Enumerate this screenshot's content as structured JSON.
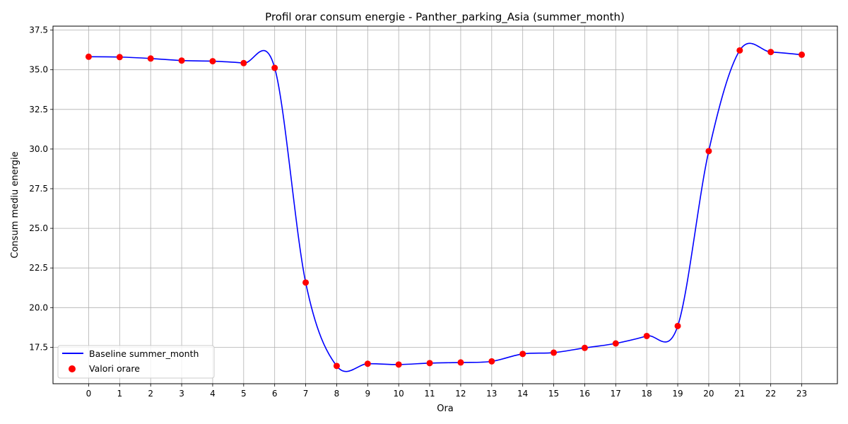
{
  "chart_data": {
    "type": "line",
    "title": "Profil orar consum energie - Panther_parking_Asia (summer_month)",
    "xlabel": "Ora",
    "ylabel": "Consum mediu energie",
    "x": [
      0,
      1,
      2,
      3,
      4,
      5,
      6,
      7,
      8,
      9,
      10,
      11,
      12,
      13,
      14,
      15,
      16,
      17,
      18,
      19,
      20,
      21,
      22,
      23
    ],
    "x_tick_labels": [
      "0",
      "1",
      "2",
      "3",
      "4",
      "5",
      "6",
      "7",
      "8",
      "9",
      "10",
      "11",
      "12",
      "13",
      "14",
      "15",
      "16",
      "17",
      "18",
      "19",
      "20",
      "21",
      "22",
      "23"
    ],
    "y_ticks": [
      17.5,
      20.0,
      22.5,
      25.0,
      27.5,
      30.0,
      32.5,
      35.0,
      37.5
    ],
    "y_tick_labels": [
      "17.5",
      "20.0",
      "22.5",
      "25.0",
      "27.5",
      "30.0",
      "32.5",
      "35.0",
      "37.5"
    ],
    "xlim": [
      -1.15,
      24.15
    ],
    "ylim": [
      15.2,
      37.75
    ],
    "grid": true,
    "legend_position": "bottom-left",
    "series": [
      {
        "name": "Baseline summer_month",
        "kind": "smooth-line",
        "color": "#0000ff",
        "values": [
          35.82,
          35.8,
          35.71,
          35.58,
          35.54,
          35.42,
          35.12,
          21.58,
          16.32,
          16.46,
          16.41,
          16.5,
          16.54,
          16.61,
          17.08,
          17.16,
          17.46,
          17.74,
          18.21,
          18.84,
          29.87,
          36.22,
          36.12,
          35.95
        ]
      },
      {
        "name": "Valori orare",
        "kind": "scatter",
        "color": "#ff0000",
        "values": [
          35.82,
          35.8,
          35.71,
          35.58,
          35.54,
          35.42,
          35.12,
          21.58,
          16.32,
          16.46,
          16.41,
          16.5,
          16.54,
          16.61,
          17.08,
          17.16,
          17.46,
          17.74,
          18.21,
          18.84,
          29.87,
          36.22,
          36.12,
          35.95
        ]
      }
    ]
  }
}
